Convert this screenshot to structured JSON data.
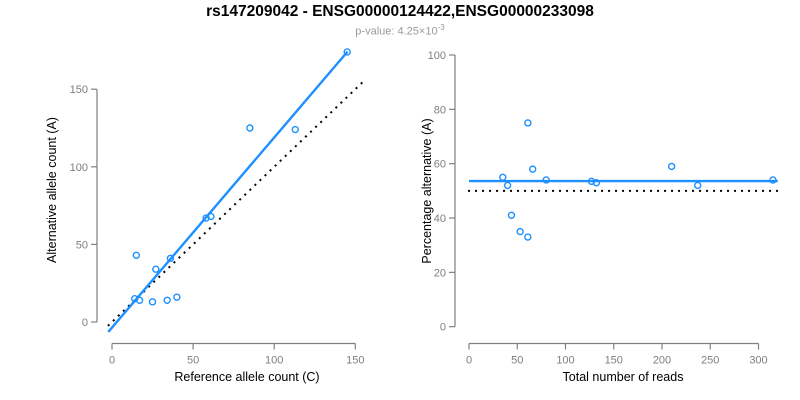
{
  "title": "rs147209042 - ENSG00000124422,ENSG00000233098",
  "subtitle": {
    "prefix": "p-value: 4.25×10",
    "exponent": "-3"
  },
  "colors": {
    "point": "#1E90FF",
    "regression": "#1E90FF",
    "identity": "#000000",
    "axis": "#808080",
    "tick_label": "#7e7e7e",
    "axis_title": "#000000",
    "subtitle": "#9a9a9a"
  },
  "chart_data": [
    {
      "type": "scatter",
      "xlabel": "Reference allele count (C)",
      "ylabel": "Alternative allele count (A)",
      "x_ticks": [
        0,
        50,
        100,
        150
      ],
      "y_ticks": [
        0,
        50,
        100,
        150
      ],
      "xlim": [
        -2.5,
        156.5
      ],
      "ylim": [
        -6.5,
        175
      ],
      "grid": false,
      "points": [
        [
          14,
          15
        ],
        [
          17,
          14
        ],
        [
          25,
          13
        ],
        [
          34,
          14
        ],
        [
          40,
          16
        ],
        [
          15,
          43
        ],
        [
          27,
          34
        ],
        [
          36,
          41
        ],
        [
          58,
          67
        ],
        [
          61,
          68
        ],
        [
          85,
          125
        ],
        [
          113,
          124
        ],
        [
          145,
          174
        ]
      ],
      "lines": [
        {
          "name": "identity-line",
          "x1": -2.5,
          "y1": -2.5,
          "x2": 156.5,
          "y2": 156.5,
          "color": "#000000",
          "dashed": true,
          "width": 2
        },
        {
          "name": "regression-line",
          "x1": -2.3,
          "y1": -6.4,
          "x2": 145.2,
          "y2": 174.2,
          "color": "#1E90FF",
          "dashed": false,
          "width": 2.4
        }
      ]
    },
    {
      "type": "scatter",
      "xlabel": "Total number of reads",
      "ylabel": "Percentage alternative (A)",
      "x_ticks": [
        0,
        50,
        100,
        150,
        200,
        250,
        300
      ],
      "y_ticks": [
        0,
        20,
        40,
        60,
        80,
        100
      ],
      "xlim": [
        -5,
        322
      ],
      "ylim": [
        0,
        100
      ],
      "grid": false,
      "points": [
        [
          35,
          55
        ],
        [
          40,
          52
        ],
        [
          44,
          41
        ],
        [
          53,
          35
        ],
        [
          61,
          33
        ],
        [
          61,
          75
        ],
        [
          66,
          58
        ],
        [
          80,
          54
        ],
        [
          127,
          53.5
        ],
        [
          132,
          53
        ],
        [
          210,
          59
        ],
        [
          237,
          52
        ],
        [
          315,
          54
        ]
      ],
      "lines": [
        {
          "name": "null-50pct-line",
          "x1": -1,
          "y1": 50,
          "x2": 321,
          "y2": 50,
          "color": "#000000",
          "dashed": true,
          "width": 2
        },
        {
          "name": "mean-pct-line",
          "x1": 0,
          "y1": 53.6,
          "x2": 320,
          "y2": 53.6,
          "color": "#1E90FF",
          "dashed": false,
          "width": 2.4
        }
      ]
    }
  ]
}
